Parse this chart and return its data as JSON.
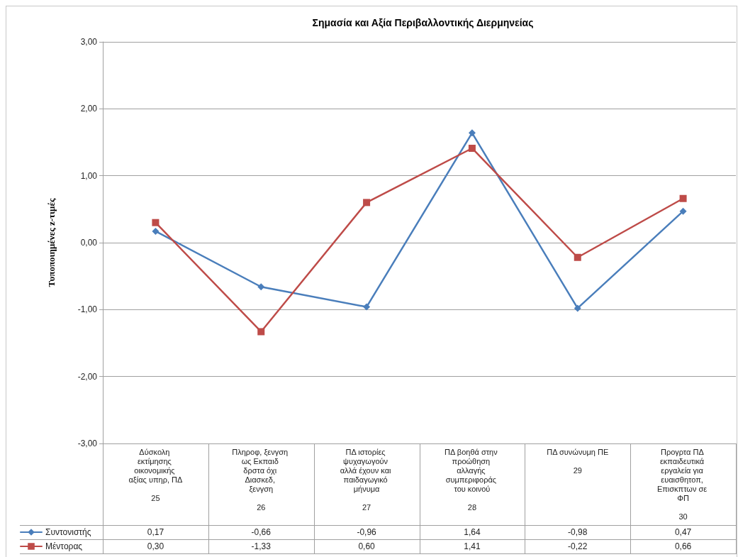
{
  "chart_data": {
    "type": "line",
    "title": "Σημασία και Αξία Περιβαλλοντικής Διερμηνείας",
    "ylabel": "Τυποποιημένες z-τιμές",
    "categories": [
      "Δύσκολη εκτίμησης οικονομικής αξίας υπηρ, ΠΔ\n25",
      "Πληροφ, ξενγση ως Εκπαιδ δρστα όχι Διασκεδ, ξενγση\n26",
      "ΠΔ ιστορίες ψυχαγωγούν αλλά έχουν και παιδαγωγικό μήνυμα\n27",
      "ΠΔ βοηθά στην προώθηση αλλαγής συμπεριφοράς του κοινού\n28",
      "ΠΔ συνώνυμη ΠΕ\n29",
      "Προγρτα ΠΔ εκπαιδευτικά εργαλεία για ευαισθητοπ, Επισκπτων σε ΦΠ\n30"
    ],
    "series": [
      {
        "name": "Συντονιστής",
        "color": "#4a7ebb",
        "marker": "diamond",
        "values": [
          0.17,
          -0.66,
          -0.96,
          1.64,
          -0.98,
          0.47
        ],
        "value_labels": [
          "0,17",
          "-0,66",
          "-0,96",
          "1,64",
          "-0,98",
          "0,47"
        ]
      },
      {
        "name": "Μέντορας",
        "color": "#be4b48",
        "marker": "square",
        "values": [
          0.3,
          -1.33,
          0.6,
          1.41,
          -0.22,
          0.66
        ],
        "value_labels": [
          "0,30",
          "-1,33",
          "0,60",
          "1,41",
          "-0,22",
          "0,66"
        ]
      }
    ],
    "ylim": [
      -3,
      3
    ],
    "yticks": [
      {
        "value": -3,
        "label": "-3,00"
      },
      {
        "value": -2,
        "label": "-2,00"
      },
      {
        "value": -1,
        "label": "-1,00"
      },
      {
        "value": 0,
        "label": "0,00"
      },
      {
        "value": 1,
        "label": "1,00"
      },
      {
        "value": 2,
        "label": "2,00"
      },
      {
        "value": 3,
        "label": "3,00"
      }
    ],
    "grid": "y",
    "legend": "bottom left",
    "line_style": "solid"
  }
}
